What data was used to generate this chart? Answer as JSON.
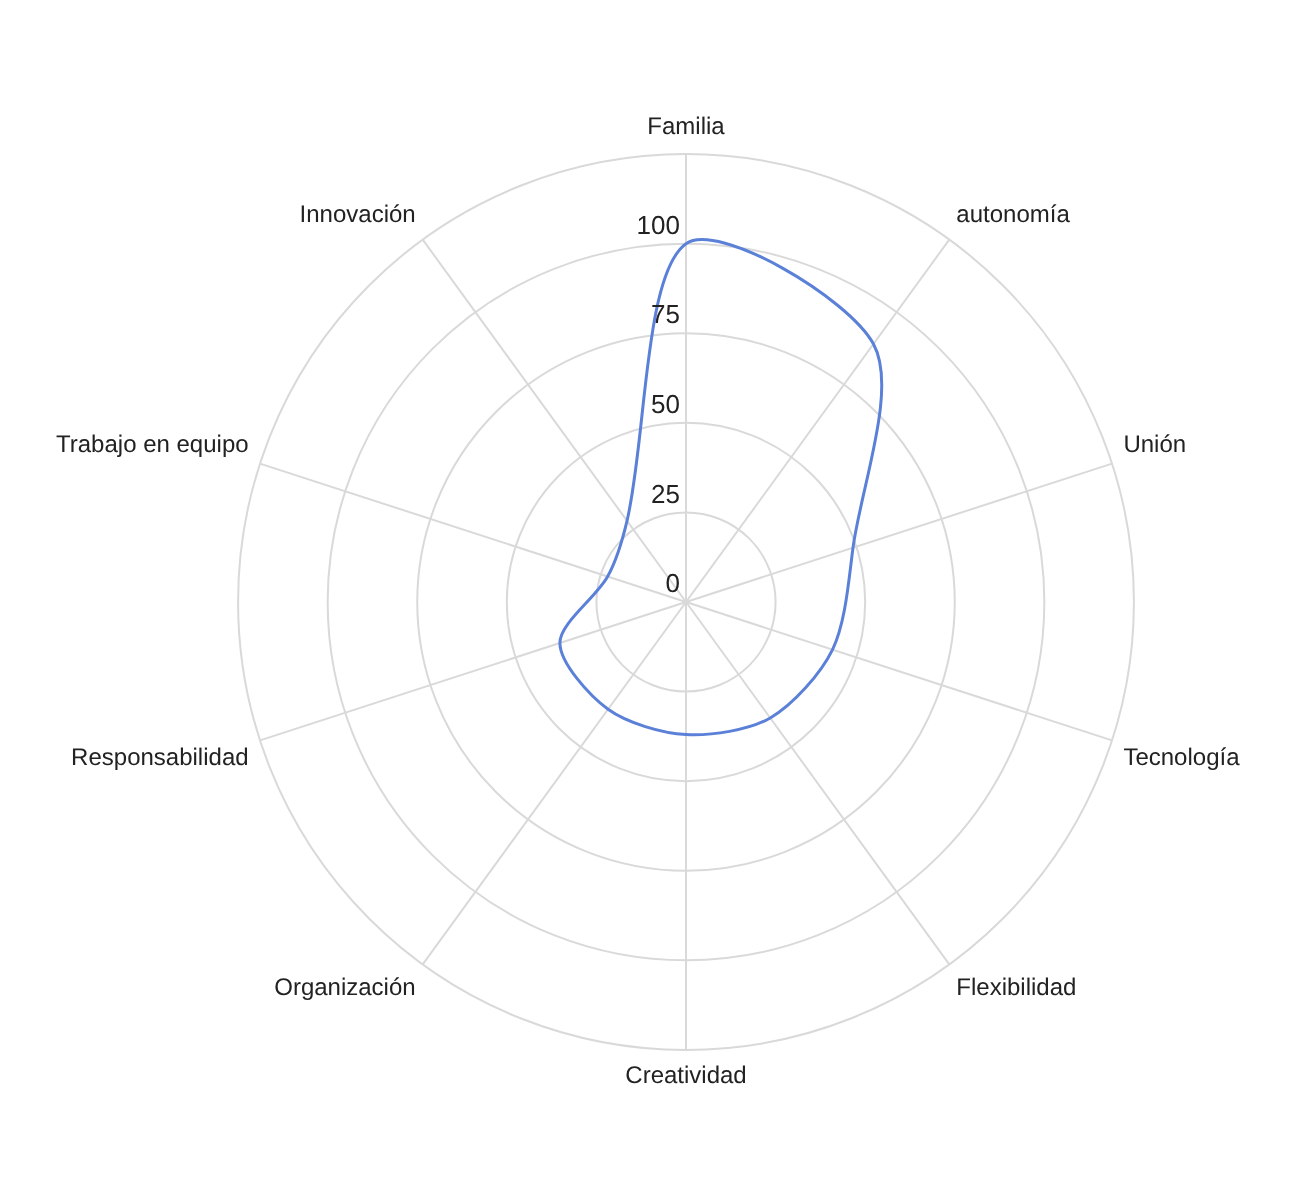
{
  "chart_data": {
    "type": "radar",
    "categories": [
      "Familia",
      "autonomía",
      "Unión",
      "Tecnología",
      "Flexibilidad",
      "Creatividad",
      "Organización",
      "Responsabilidad",
      "Trabajo en equipo",
      "Innovación"
    ],
    "series": [
      {
        "color": "#5b80d8",
        "values": [
          100,
          89,
          49,
          43,
          40,
          37,
          37,
          37,
          23,
          28
        ]
      }
    ],
    "ylim": [
      0,
      125
    ],
    "yticks": [
      0,
      25,
      50,
      75,
      100
    ],
    "grid": true,
    "legend": false,
    "marker": "none",
    "line_style": "solid"
  }
}
